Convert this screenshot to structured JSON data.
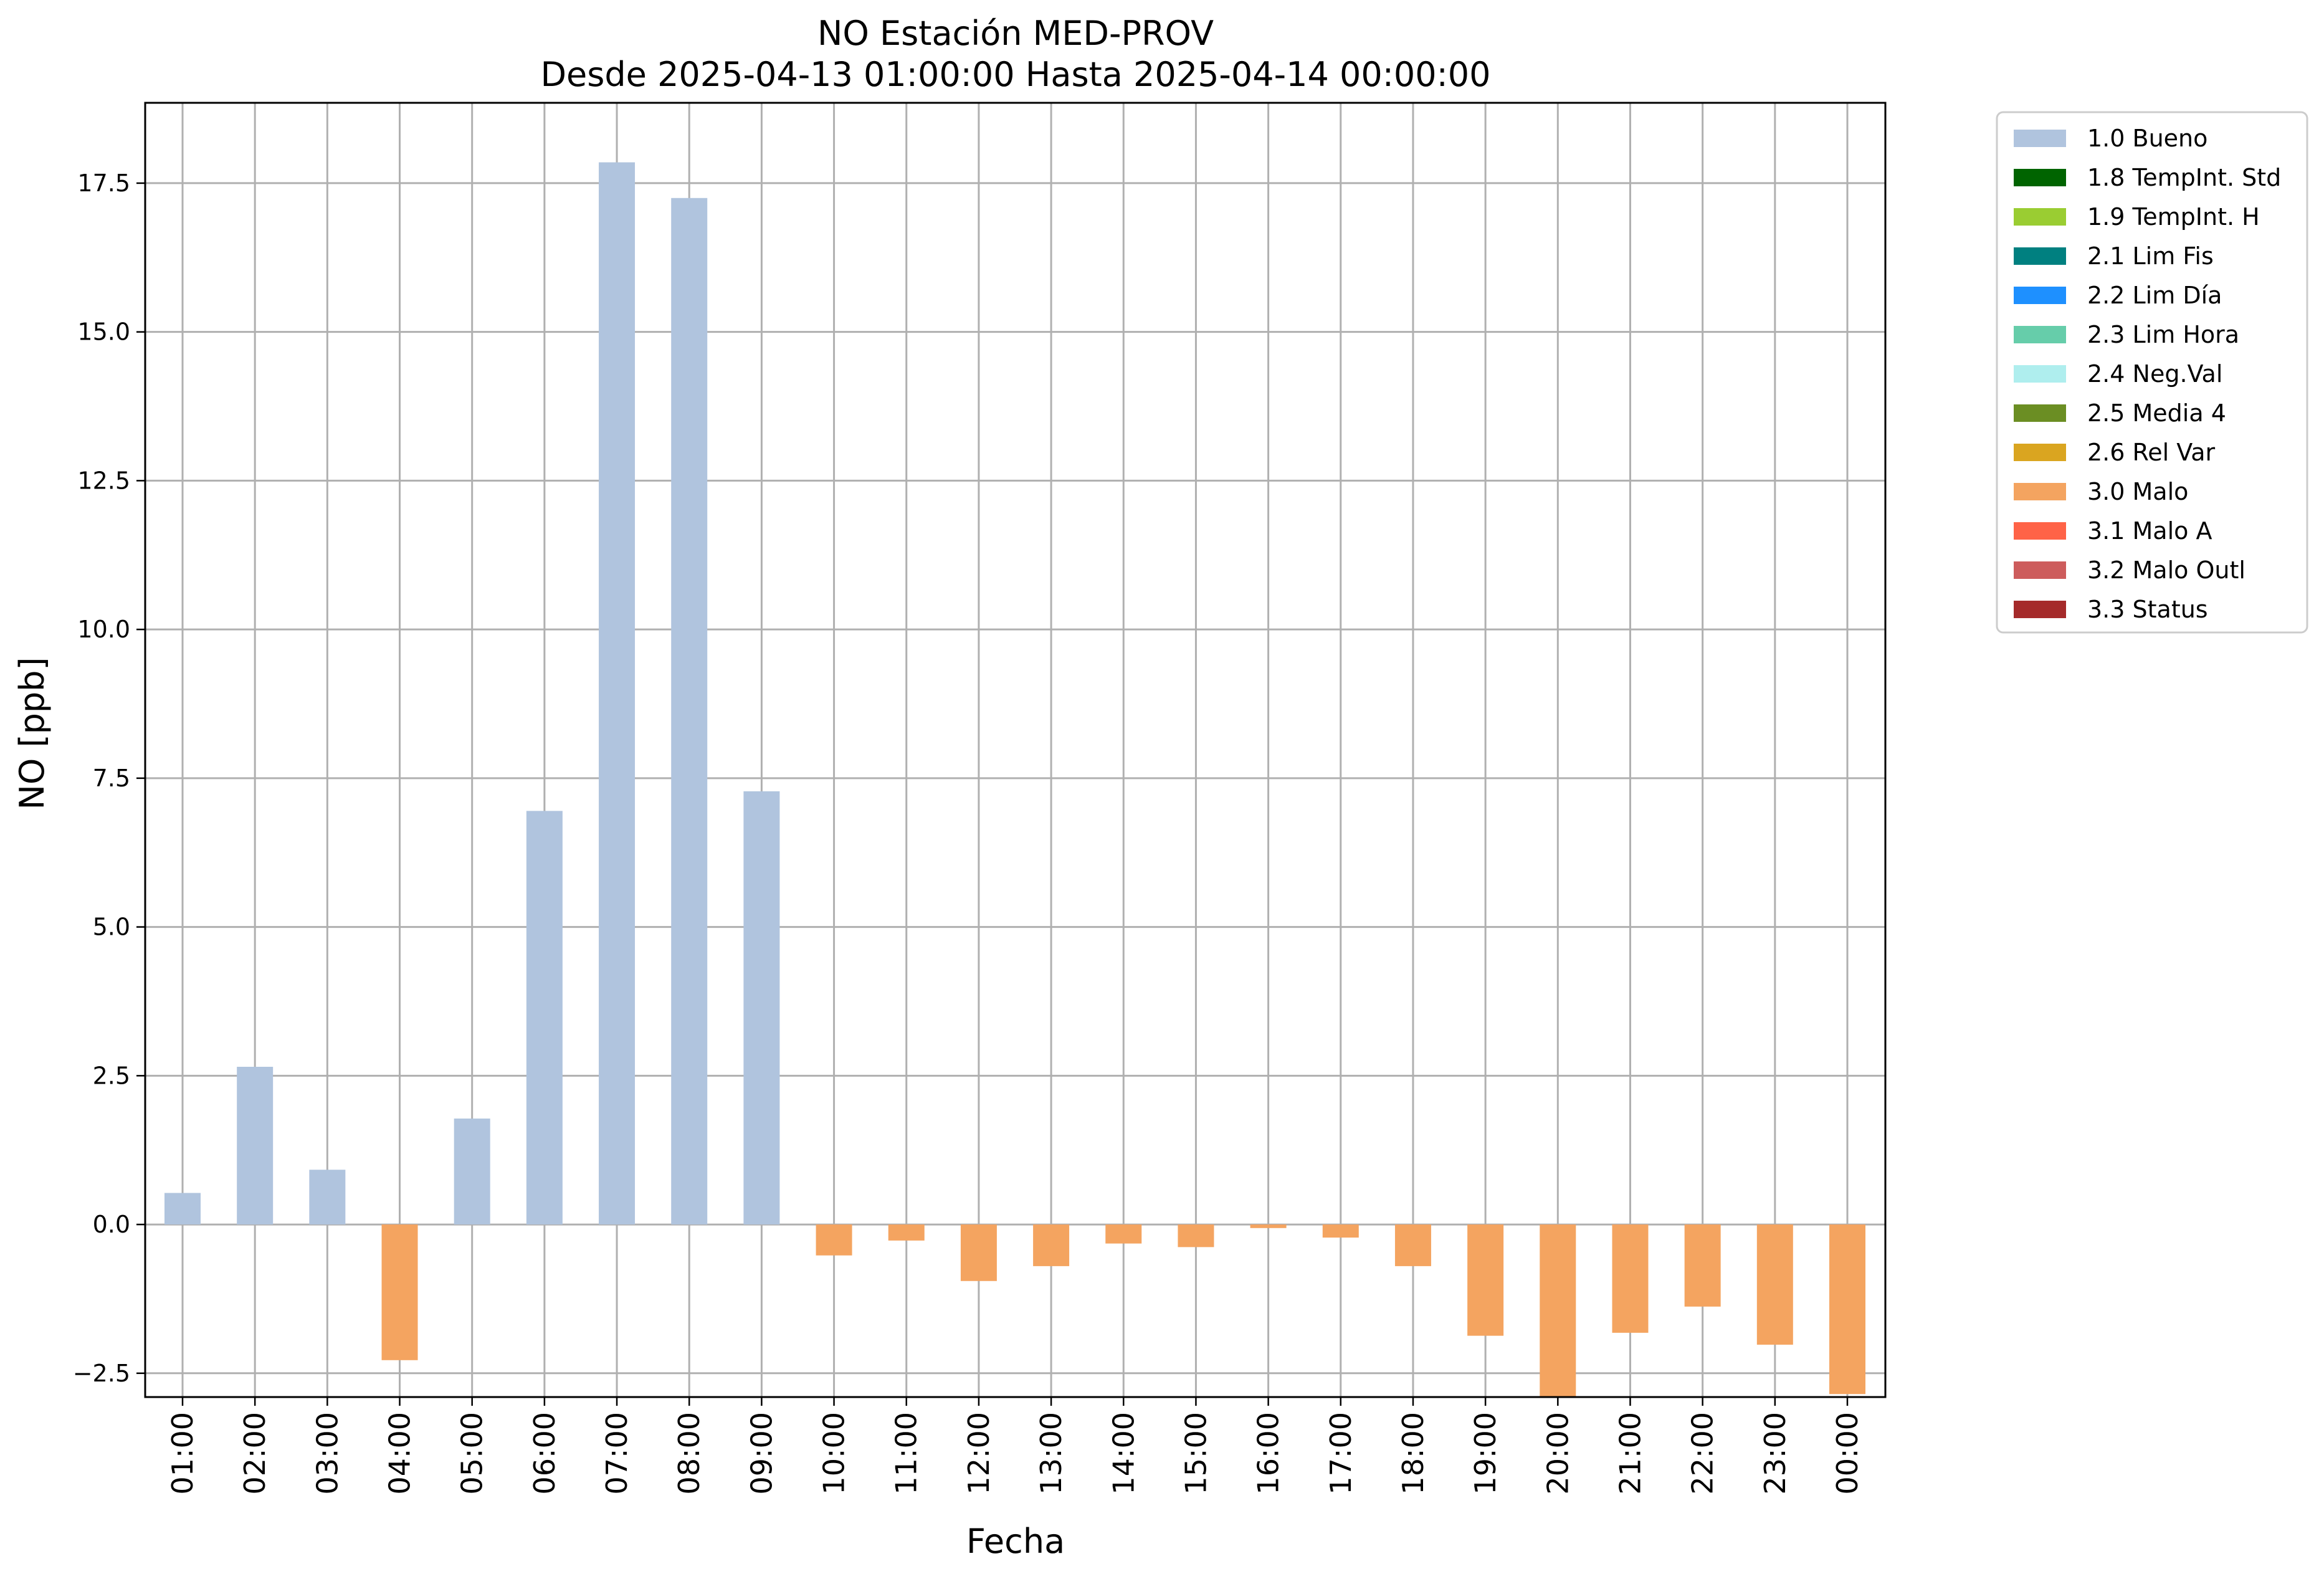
{
  "chart_data": {
    "type": "bar",
    "title": "NO Estación MED-PROV",
    "subtitle": "Desde 2025-04-13 01:00:00 Hasta 2025-04-14 00:00:00",
    "xlabel": "Fecha",
    "ylabel": "NO [ppb]",
    "ylim": [
      -2.9,
      18.85
    ],
    "yticks": [
      -2.5,
      0.0,
      2.5,
      5.0,
      7.5,
      10.0,
      12.5,
      15.0,
      17.5
    ],
    "ytick_labels": [
      "−2.5",
      "0.0",
      "2.5",
      "5.0",
      "7.5",
      "10.0",
      "12.5",
      "15.0",
      "17.5"
    ],
    "grid": true,
    "legend_position": "outside-top-right",
    "categories": [
      "01:00",
      "02:00",
      "03:00",
      "04:00",
      "05:00",
      "06:00",
      "07:00",
      "08:00",
      "09:00",
      "10:00",
      "11:00",
      "12:00",
      "13:00",
      "14:00",
      "15:00",
      "16:00",
      "17:00",
      "18:00",
      "19:00",
      "20:00",
      "21:00",
      "22:00",
      "23:00",
      "00:00"
    ],
    "values": [
      0.53,
      2.65,
      0.92,
      -2.28,
      1.78,
      6.95,
      17.85,
      17.25,
      7.28,
      -0.52,
      -0.27,
      -0.95,
      -0.7,
      -0.32,
      -0.38,
      -0.06,
      -0.22,
      -0.7,
      -1.87,
      -2.9,
      -1.82,
      -1.38,
      -2.02,
      -2.85
    ],
    "flags": [
      "1.0 Bueno",
      "1.0 Bueno",
      "1.0 Bueno",
      "3.0 Malo",
      "1.0 Bueno",
      "1.0 Bueno",
      "1.0 Bueno",
      "1.0 Bueno",
      "1.0 Bueno",
      "3.0 Malo",
      "3.0 Malo",
      "3.0 Malo",
      "3.0 Malo",
      "3.0 Malo",
      "3.0 Malo",
      "3.0 Malo",
      "3.0 Malo",
      "3.0 Malo",
      "3.0 Malo",
      "3.0 Malo",
      "3.0 Malo",
      "3.0 Malo",
      "3.0 Malo",
      "3.0 Malo"
    ],
    "legend": [
      {
        "label": "1.0 Bueno",
        "color": "#b0c4de"
      },
      {
        "label": "1.8 TempInt. Std",
        "color": "#006400"
      },
      {
        "label": "1.9 TempInt. H",
        "color": "#9acd32"
      },
      {
        "label": "2.1 Lim Fis",
        "color": "#008080"
      },
      {
        "label": "2.2 Lim Día",
        "color": "#1e90ff"
      },
      {
        "label": "2.3 Lim Hora",
        "color": "#66cdaa"
      },
      {
        "label": "2.4 Neg.Val",
        "color": "#afeeee"
      },
      {
        "label": "2.5 Media 4",
        "color": "#6b8e23"
      },
      {
        "label": "2.6 Rel Var",
        "color": "#daa520"
      },
      {
        "label": "3.0 Malo",
        "color": "#f4a460"
      },
      {
        "label": "3.1 Malo A",
        "color": "#ff6347"
      },
      {
        "label": "3.2 Malo Outl",
        "color": "#cd5c5c"
      },
      {
        "label": "3.3 Status",
        "color": "#a52a2a"
      }
    ]
  }
}
